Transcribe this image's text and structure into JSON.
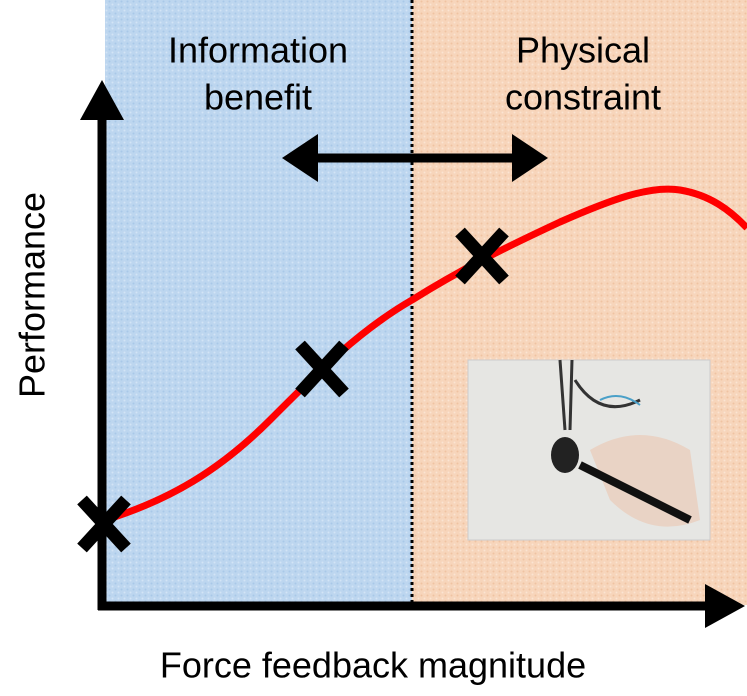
{
  "regions": [
    {
      "label_lines": [
        "Information",
        "benefit"
      ]
    },
    {
      "label_lines": [
        "Physical",
        "constraint"
      ]
    }
  ],
  "y_axis_label": "Performance",
  "x_axis_label": "Force feedback magnitude"
}
